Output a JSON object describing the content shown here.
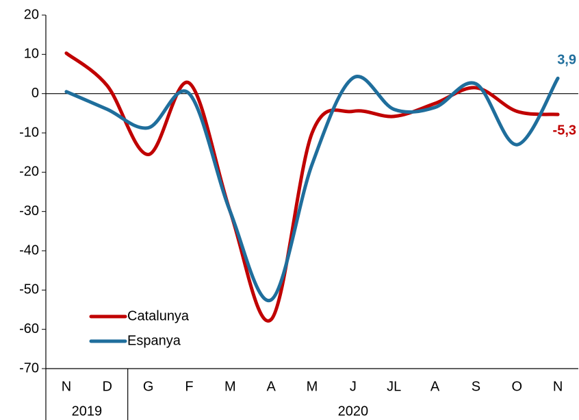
{
  "chart_data": {
    "type": "line",
    "categories": [
      "N",
      "D",
      "G",
      "F",
      "M",
      "A",
      "M",
      "J",
      "JL",
      "A",
      "S",
      "O",
      "N"
    ],
    "x_groups": [
      {
        "label": "2019",
        "start": 0,
        "end": 1
      },
      {
        "label": "2020",
        "start": 2,
        "end": 12
      }
    ],
    "series": [
      {
        "name": "Catalunya",
        "color": "#c00000",
        "values": [
          10.3,
          2,
          -15.5,
          2.7,
          -30,
          -57.5,
          -10,
          -4.5,
          -5.8,
          -2.5,
          1.5,
          -4.5,
          -5.3
        ],
        "value_labels": [
          null,
          null,
          null,
          null,
          null,
          null,
          null,
          null,
          null,
          null,
          null,
          null,
          "-5,3"
        ]
      },
      {
        "name": "Espanya",
        "color": "#1f6e9c",
        "values": [
          0.5,
          -4,
          -8.7,
          0,
          -30,
          -52.5,
          -18,
          4,
          -4,
          -3.5,
          2.5,
          -13,
          3.9
        ],
        "value_labels": [
          null,
          null,
          null,
          null,
          null,
          null,
          null,
          null,
          null,
          null,
          null,
          null,
          "3,9"
        ]
      }
    ],
    "ylim": [
      -70,
      20
    ],
    "yticks": [
      -70,
      -60,
      -50,
      -40,
      -30,
      -20,
      -10,
      0,
      10,
      20
    ],
    "grid": false,
    "legend": "bottom-left"
  }
}
